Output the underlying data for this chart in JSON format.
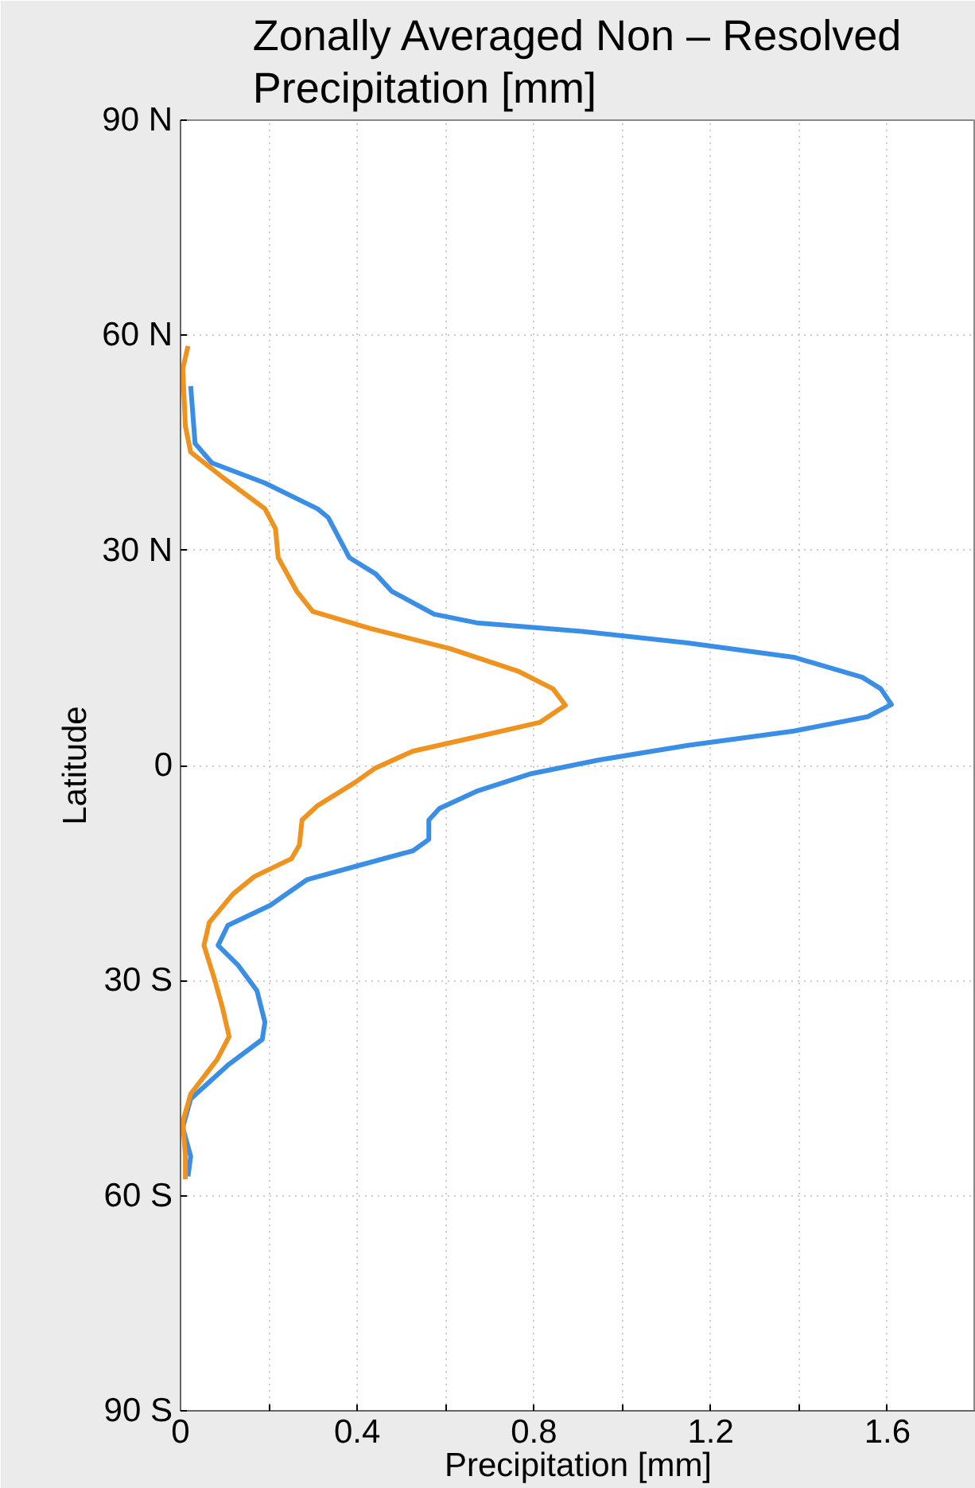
{
  "chart_data": {
    "type": "line",
    "title": "Zonally Averaged Non – Resolved Precipitation [mm]",
    "xlabel": "Precipitation [mm]",
    "ylabel": "Latitude",
    "xlim": [
      0,
      1.8
    ],
    "ylim": [
      -90,
      90
    ],
    "xticks": [
      0,
      {
        "value": 0.2,
        "label": null
      },
      0.4,
      {
        "value": 0.6,
        "label": null
      },
      0.8,
      {
        "value": 1.0,
        "label": null
      },
      1.2,
      {
        "value": 1.4,
        "label": null
      },
      1.6
    ],
    "yticks": [
      {
        "value": -90,
        "label": "90 S"
      },
      {
        "value": -60,
        "label": "60 S"
      },
      {
        "value": -30,
        "label": "30 S"
      },
      0,
      {
        "value": 30,
        "label": "30 N"
      },
      {
        "value": 60,
        "label": "60 N"
      },
      {
        "value": 90,
        "label": "90 N"
      }
    ],
    "grid": true,
    "line_style": "solid",
    "marker": "none",
    "series": [
      {
        "color": "#3a8ee6",
        "x": [
          0.023,
          0.033,
          0.071,
          0.191,
          0.31,
          0.334,
          0.382,
          0.442,
          0.478,
          0.574,
          0.67,
          0.909,
          1.148,
          1.388,
          1.543,
          1.585,
          1.609,
          1.555,
          1.388,
          1.148,
          0.95,
          0.79,
          0.67,
          0.586,
          0.562,
          0.562,
          0.526,
          0.406,
          0.287,
          0.203,
          0.107,
          0.085,
          0.131,
          0.173,
          0.191,
          0.185,
          0.107,
          0.023,
          0.005,
          0.023,
          0.017
        ],
        "values": [
          52.9,
          44.9,
          42.2,
          39.4,
          35.8,
          34.6,
          29.0,
          26.7,
          24.3,
          21.1,
          19.9,
          18.7,
          17.1,
          15.1,
          12.3,
          10.7,
          8.5,
          6.8,
          4.8,
          2.8,
          0.8,
          -1.2,
          -3.6,
          -6.0,
          -7.6,
          -10.3,
          -11.9,
          -13.9,
          -15.9,
          -19.5,
          -22.3,
          -25.1,
          -27.9,
          -31.4,
          -35.8,
          -38.2,
          -41.8,
          -46.5,
          -50.5,
          -54.5,
          -57.3
        ]
      },
      {
        "color": "#f0921e",
        "x": [
          0.017,
          0.005,
          0.011,
          0.023,
          0.095,
          0.191,
          0.215,
          0.221,
          0.263,
          0.299,
          0.43,
          0.61,
          0.766,
          0.843,
          0.871,
          0.813,
          0.67,
          0.526,
          0.44,
          0.394,
          0.31,
          0.275,
          0.269,
          0.251,
          0.167,
          0.119,
          0.065,
          0.053,
          0.077,
          0.095,
          0.11,
          0.083,
          0.023,
          0.005,
          0.011,
          0.011
        ],
        "values": [
          58.5,
          55.3,
          47.3,
          43.7,
          40.2,
          35.8,
          33.0,
          29.0,
          24.3,
          21.5,
          19.1,
          16.3,
          13.1,
          10.7,
          8.4,
          6.0,
          4.0,
          2.0,
          -0.4,
          -2.4,
          -5.6,
          -7.6,
          -11.1,
          -13.0,
          -15.5,
          -17.9,
          -21.9,
          -25.1,
          -29.8,
          -33.8,
          -37.8,
          -41.0,
          -45.8,
          -49.7,
          -54.5,
          -57.7
        ]
      }
    ]
  }
}
